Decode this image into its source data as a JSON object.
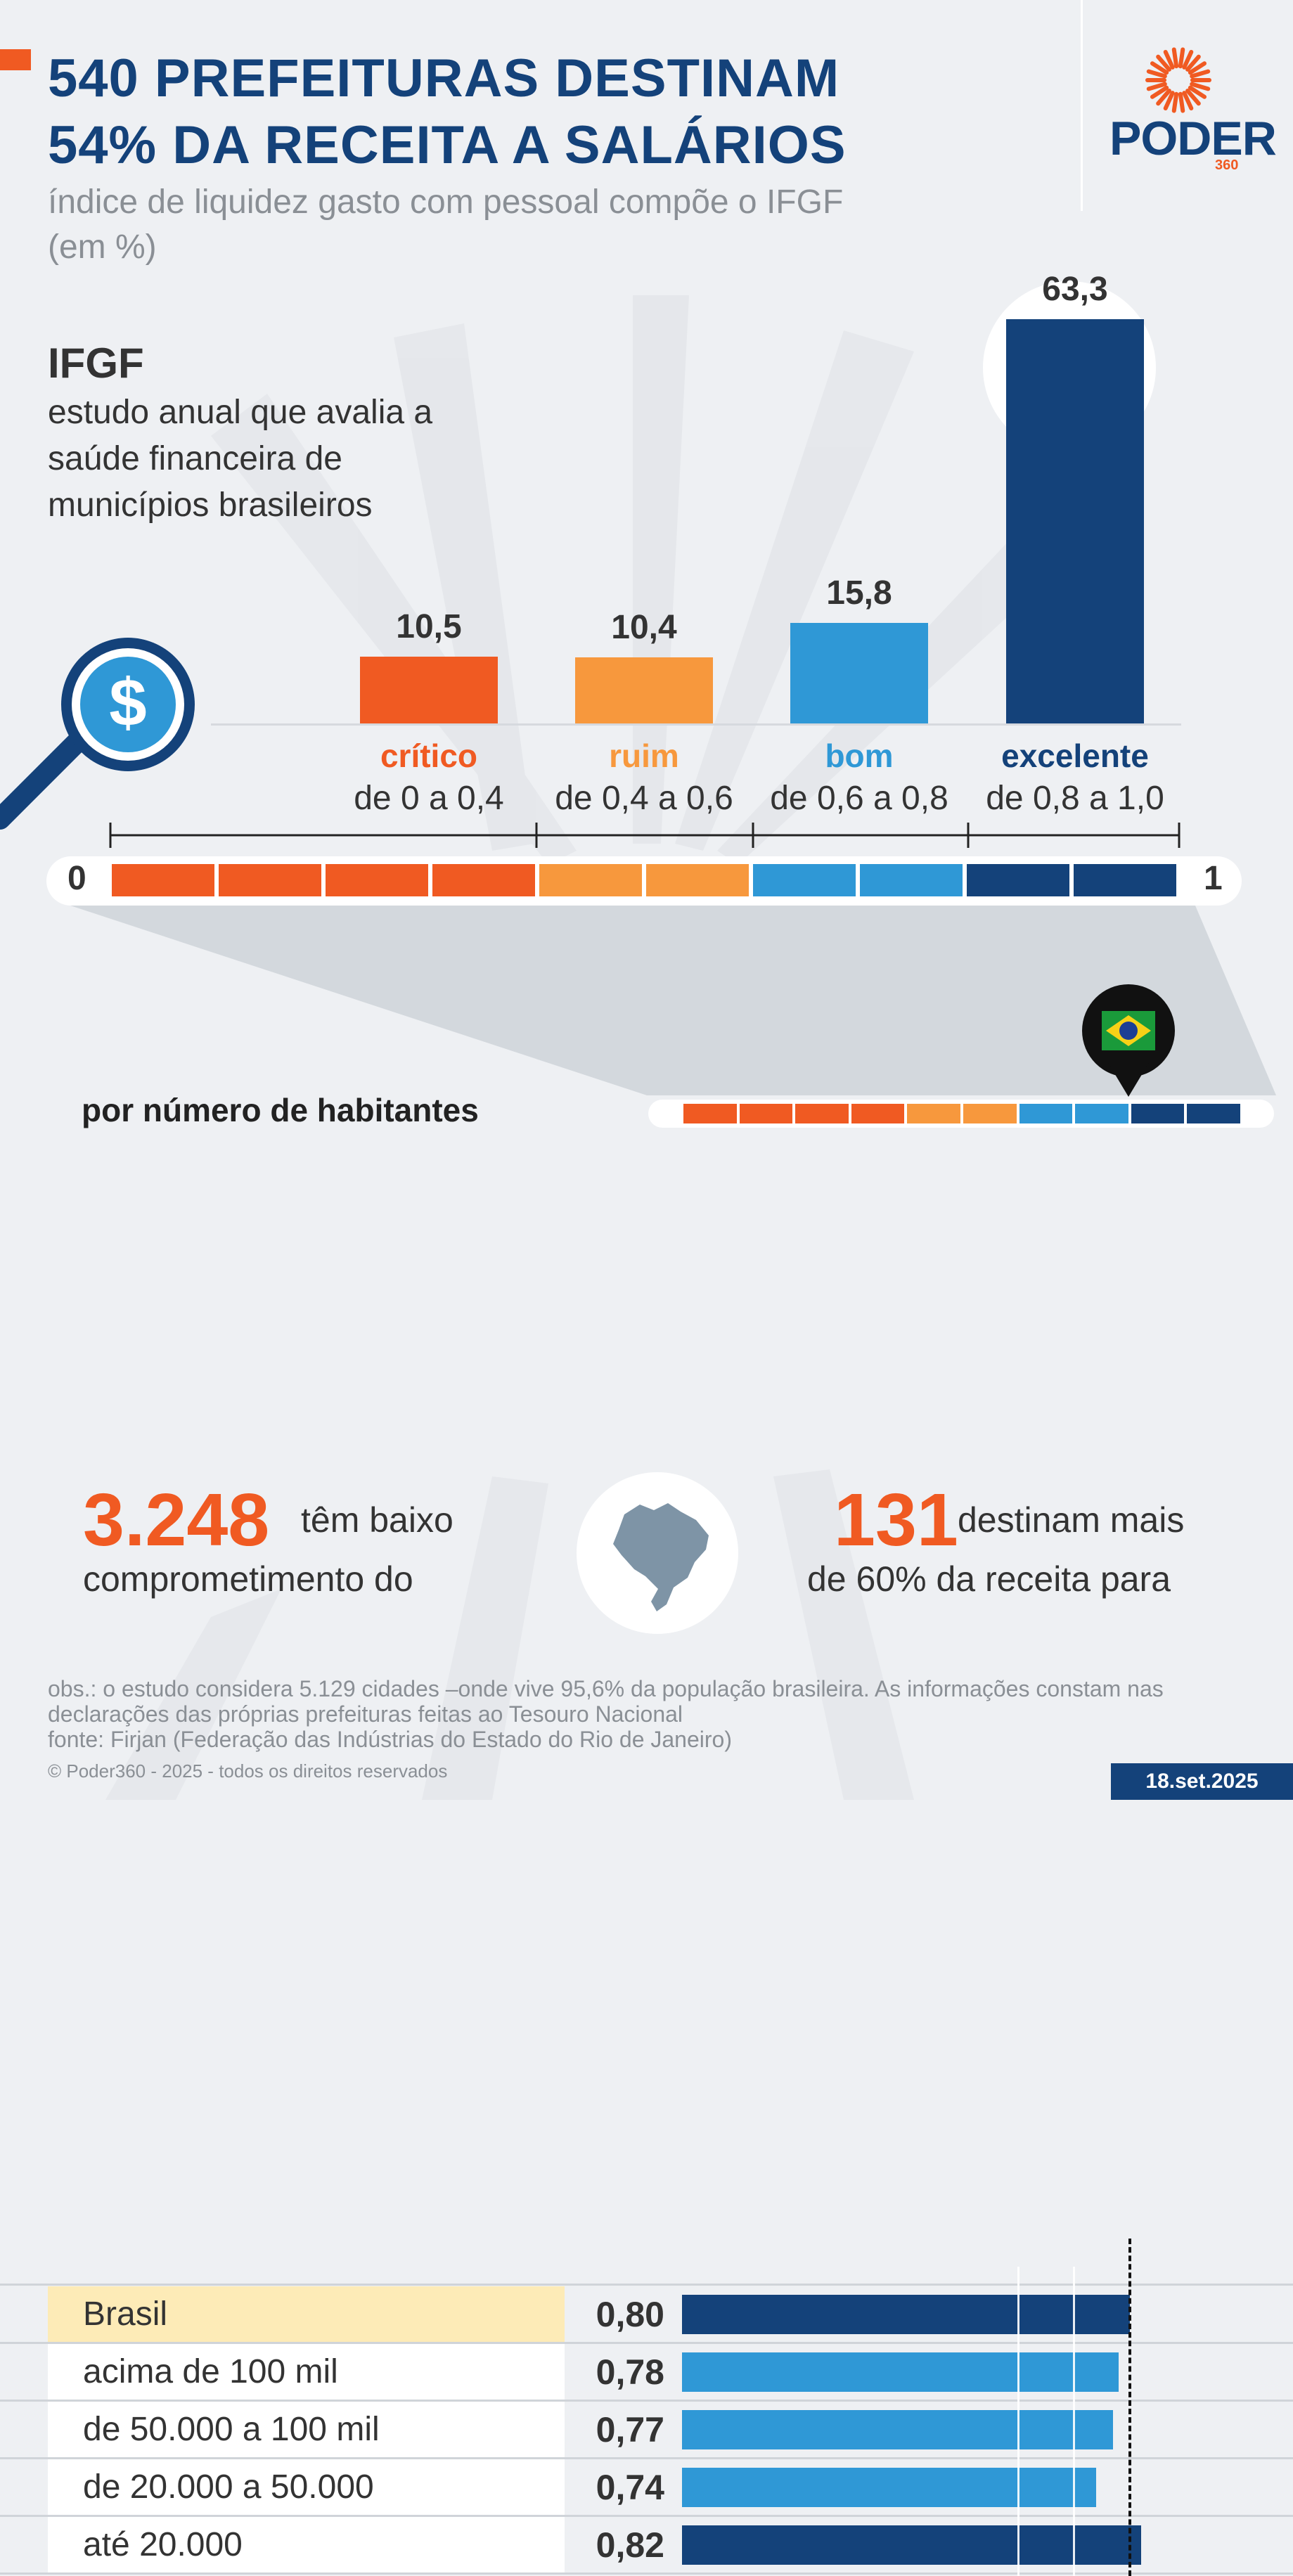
{
  "header": {
    "title_line1": "540 PREFEITURAS DESTINAM",
    "title_line2": "54% DA RECEITA A SALÁRIOS",
    "subtitle": "índice de liquidez gasto com pessoal compõe o IFGF (em %)"
  },
  "logo": {
    "name": "PODER",
    "sub": "360",
    "icon": "sun-burst-icon"
  },
  "intro": {
    "heading": "IFGF",
    "description": "estudo anual que avalia a saúde financeira de municípios brasileiros"
  },
  "colors": {
    "critico": "#f05a22",
    "ruim": "#f7983d",
    "bom": "#2f98d6",
    "excelente": "#14427a",
    "highlight": "#fdebb7"
  },
  "chart_data": [
    {
      "type": "bar",
      "categories": [
        "crítico",
        "ruim",
        "bom",
        "excelente"
      ],
      "ranges": [
        "de 0 a 0,4",
        "de 0,4 a 0,6",
        "de 0,6 a 0,8",
        "de 0,8 a 1,0"
      ],
      "values": [
        10.5,
        10.4,
        15.8,
        63.3
      ],
      "value_labels": [
        "10,5",
        "10,4",
        "15,8",
        "63,3"
      ],
      "scale_min_label": "0",
      "scale_max_label": "1"
    },
    {
      "type": "bar",
      "orientation": "horizontal",
      "title": "por número de habitantes",
      "categories": [
        "Brasil",
        "acima de 100 mil",
        "de 50.000 a 100 mil",
        "de 20.000 a 50.000",
        "até 20.000"
      ],
      "values": [
        0.8,
        0.78,
        0.77,
        0.74,
        0.82
      ],
      "value_labels": [
        "0,80",
        "0,78",
        "0,77",
        "0,74",
        "0,82"
      ],
      "reference_line": 0.8,
      "reference_marker": "brazil-flag-icon",
      "xlim": [
        0,
        1
      ]
    }
  ],
  "stats": [
    {
      "number": "3.248",
      "text_line1": "têm baixo",
      "text_line2": "comprometimento do"
    },
    {
      "number": "131",
      "text_line1": "destinam mais",
      "text_line2": "de 60% da receita para"
    }
  ],
  "map_icon": "brazil-map-icon",
  "footer": {
    "note_line1": "obs.: o estudo considera 5.129 cidades –onde vive 95,6% da população brasileira. As informações constam nas",
    "note_line2": "declarações das próprias prefeituras feitas ao Tesouro Nacional",
    "source": "fonte: Firjan (Federação das Indústrias do Estado do Rio de Janeiro)",
    "copyright": "© Poder360 - 2025 - todos os direitos reservados",
    "date": "18.set.2025"
  }
}
